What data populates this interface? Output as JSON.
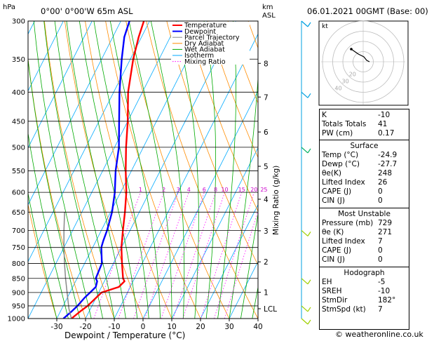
{
  "chart_data": {
    "type": "line",
    "title": "0°00' 0°00'W 65m ASL",
    "header_right": "06.01.2021 00GMT (Base: 00)",
    "ylabel_left": "hPa",
    "ylabel_right_km": "km",
    "ylabel_right_asl": "ASL",
    "mixing_ratio_label": "Mixing Ratio (g/kg)",
    "xlabel": "Dewpoint / Temperature (°C)",
    "xlim": [
      -40,
      40
    ],
    "ylim_hPa": [
      1000,
      300
    ],
    "skew_per_decade_C": 100,
    "pressure_ticks": [
      300,
      350,
      400,
      450,
      500,
      550,
      600,
      650,
      700,
      750,
      800,
      850,
      900,
      950,
      1000
    ],
    "temp_ticks": [
      -30,
      -20,
      -10,
      0,
      10,
      20,
      30,
      40
    ],
    "km_ticks": [
      {
        "label": "8",
        "p": 356
      },
      {
        "label": "7",
        "p": 408
      },
      {
        "label": "6",
        "p": 470
      },
      {
        "label": "5",
        "p": 540
      },
      {
        "label": "4",
        "p": 617
      },
      {
        "label": "3",
        "p": 701
      },
      {
        "label": "2",
        "p": 795
      },
      {
        "label": "1",
        "p": 899
      },
      {
        "label": "LCL",
        "p": 961
      }
    ],
    "mixing_ratio_values": [
      "1",
      "2",
      "3",
      "4",
      "6",
      "8",
      "10",
      "15",
      "20",
      "25"
    ],
    "legend": [
      {
        "name": "Temperature",
        "color": "#ff0000"
      },
      {
        "name": "Dewpoint",
        "color": "#0000ff"
      },
      {
        "name": "Parcel Trajectory",
        "color": "#888888"
      },
      {
        "name": "Dry Adiabat",
        "color": "#ff8c00"
      },
      {
        "name": "Wet Adiabat",
        "color": "#00aa00"
      },
      {
        "name": "Isotherm",
        "color": "#00aaff"
      },
      {
        "name": "Mixing Ratio",
        "color": "#ff00ff"
      }
    ],
    "series": [
      {
        "name": "Temperature",
        "color": "#ff0000",
        "points": [
          [
            1000,
            -24.9
          ],
          [
            970,
            -23
          ],
          [
            950,
            -21.5
          ],
          [
            920,
            -20
          ],
          [
            900,
            -19
          ],
          [
            880,
            -14
          ],
          [
            860,
            -13
          ],
          [
            850,
            -14
          ],
          [
            800,
            -17
          ],
          [
            750,
            -20
          ],
          [
            700,
            -22.5
          ],
          [
            650,
            -25
          ],
          [
            600,
            -28
          ],
          [
            550,
            -32
          ],
          [
            500,
            -36
          ],
          [
            450,
            -40
          ],
          [
            400,
            -45
          ],
          [
            350,
            -49
          ],
          [
            320,
            -51
          ],
          [
            300,
            -52
          ]
        ]
      },
      {
        "name": "Dewpoint",
        "color": "#0000ff",
        "points": [
          [
            1000,
            -27.7
          ],
          [
            970,
            -26
          ],
          [
            950,
            -25
          ],
          [
            920,
            -24
          ],
          [
            900,
            -23
          ],
          [
            880,
            -22
          ],
          [
            860,
            -22.5
          ],
          [
            850,
            -23.5
          ],
          [
            800,
            -24
          ],
          [
            750,
            -27
          ],
          [
            730,
            -27.5
          ],
          [
            700,
            -28
          ],
          [
            650,
            -29.5
          ],
          [
            600,
            -32
          ],
          [
            550,
            -35.5
          ],
          [
            500,
            -38.5
          ],
          [
            450,
            -43
          ],
          [
            400,
            -48
          ],
          [
            350,
            -53
          ],
          [
            320,
            -56
          ],
          [
            300,
            -57
          ]
        ]
      },
      {
        "name": "Parcel Trajectory",
        "color": "#888888",
        "points": [
          [
            1000,
            -24.9
          ],
          [
            961,
            -27.5
          ],
          [
            900,
            -31
          ],
          [
            850,
            -34
          ],
          [
            800,
            -37
          ],
          [
            750,
            -40
          ],
          [
            700,
            -43
          ],
          [
            650,
            -46
          ]
        ]
      }
    ],
    "wind_barbs_hPa": [
      300,
      400,
      500,
      700,
      850,
      950,
      1000
    ],
    "hodograph": {
      "label": "kt",
      "rings_kt": [
        10,
        20,
        30,
        40
      ],
      "ring_labels": [
        "40",
        "30",
        "20"
      ]
    }
  },
  "indices": {
    "rows": [
      {
        "key": "K",
        "value": "-10"
      },
      {
        "key": "Totals Totals",
        "value": "41"
      },
      {
        "key": "PW (cm)",
        "value": "0.17"
      }
    ]
  },
  "surface": {
    "title": "Surface",
    "rows": [
      {
        "key": "Temp (°C)",
        "value": "-24.9"
      },
      {
        "key": "Dewp (°C)",
        "value": "-27.7"
      },
      {
        "key": "θe(K)",
        "value": "248"
      },
      {
        "key": "Lifted Index",
        "value": "26"
      },
      {
        "key": "CAPE (J)",
        "value": "0"
      },
      {
        "key": "CIN (J)",
        "value": "0"
      }
    ]
  },
  "most_unstable": {
    "title": "Most Unstable",
    "rows": [
      {
        "key": "Pressure (mb)",
        "value": "729"
      },
      {
        "key": "θe (K)",
        "value": "271"
      },
      {
        "key": "Lifted Index",
        "value": "7"
      },
      {
        "key": "CAPE (J)",
        "value": "0"
      },
      {
        "key": "CIN (J)",
        "value": "0"
      }
    ]
  },
  "hodograph_table": {
    "title": "Hodograph",
    "rows": [
      {
        "key": "EH",
        "value": "-5"
      },
      {
        "key": "SREH",
        "value": "-10"
      },
      {
        "key": "StmDir",
        "value": "182°"
      },
      {
        "key": "StmSpd (kt)",
        "value": "7"
      }
    ]
  },
  "copyright": "© weatheronline.co.uk"
}
